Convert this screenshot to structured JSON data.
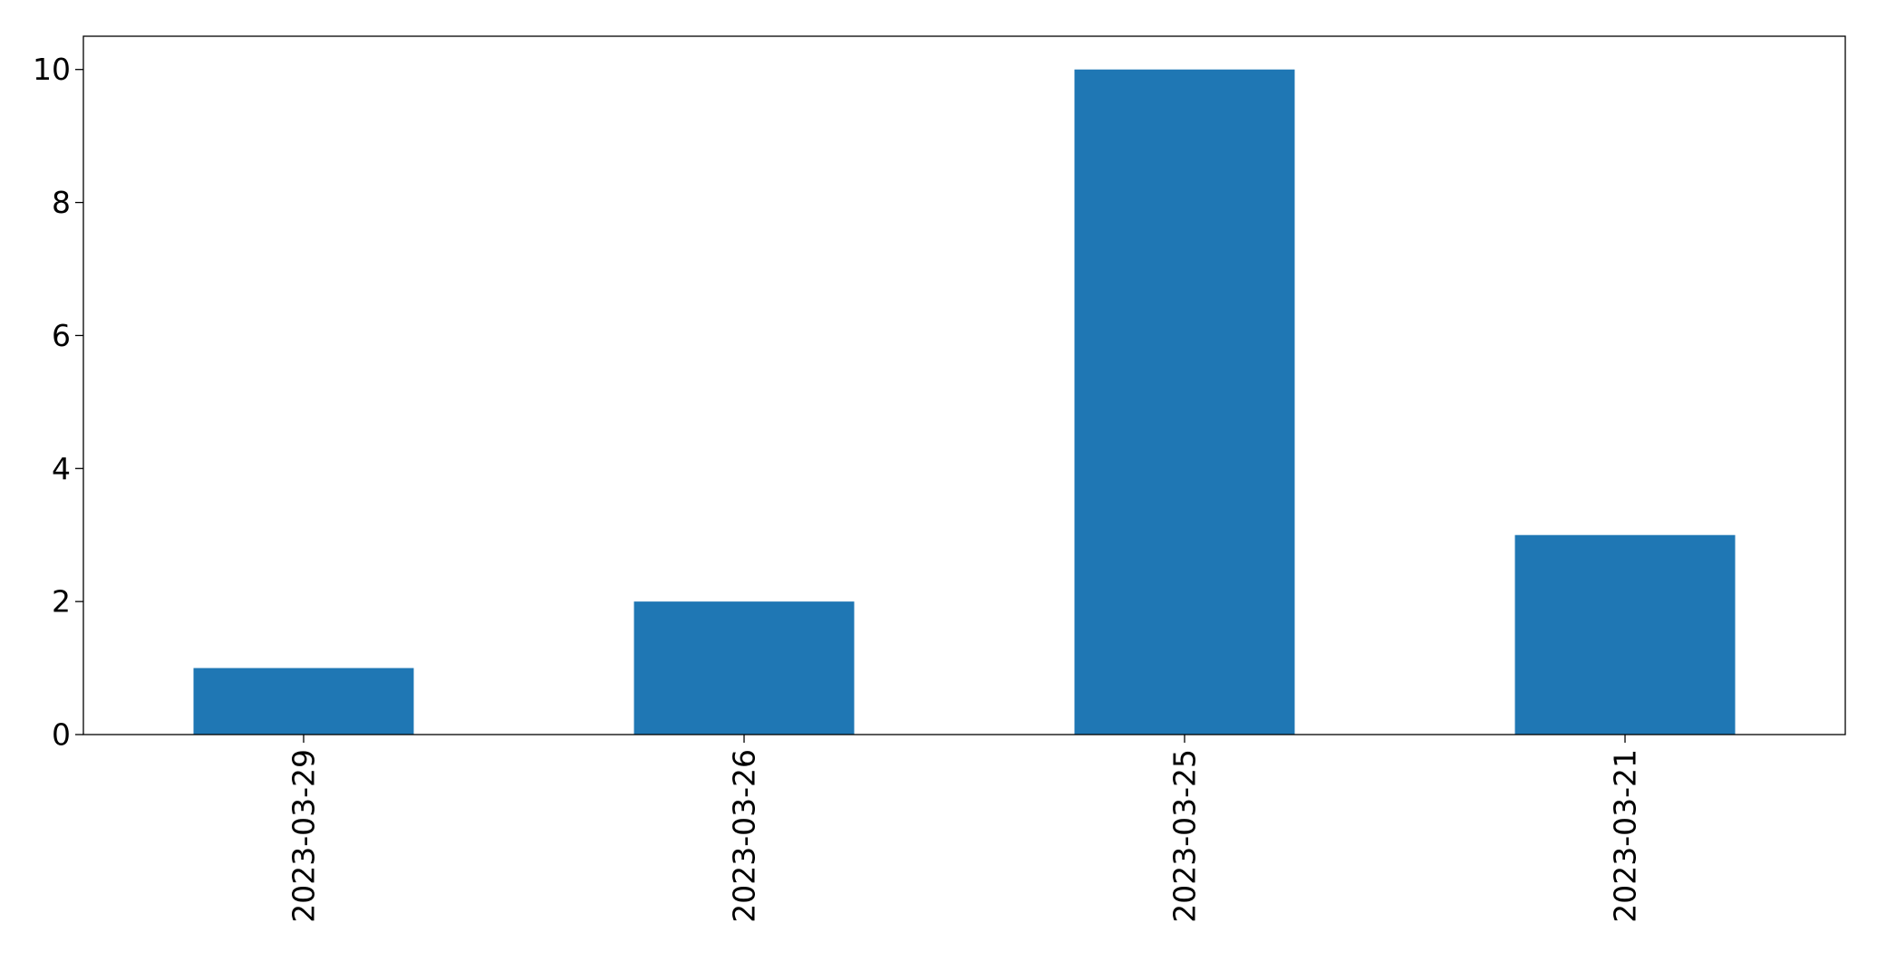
{
  "chart_data": {
    "type": "bar",
    "categories": [
      "2023-03-29",
      "2023-03-26",
      "2023-03-25",
      "2023-03-21"
    ],
    "values": [
      1,
      2,
      10,
      3
    ],
    "title": "",
    "xlabel": "",
    "ylabel": "",
    "ylim": [
      0,
      10.5
    ],
    "yticks": [
      0,
      2,
      4,
      6,
      8,
      10
    ],
    "grid": false,
    "legend": "none",
    "bar_color": "#1f77b4"
  }
}
